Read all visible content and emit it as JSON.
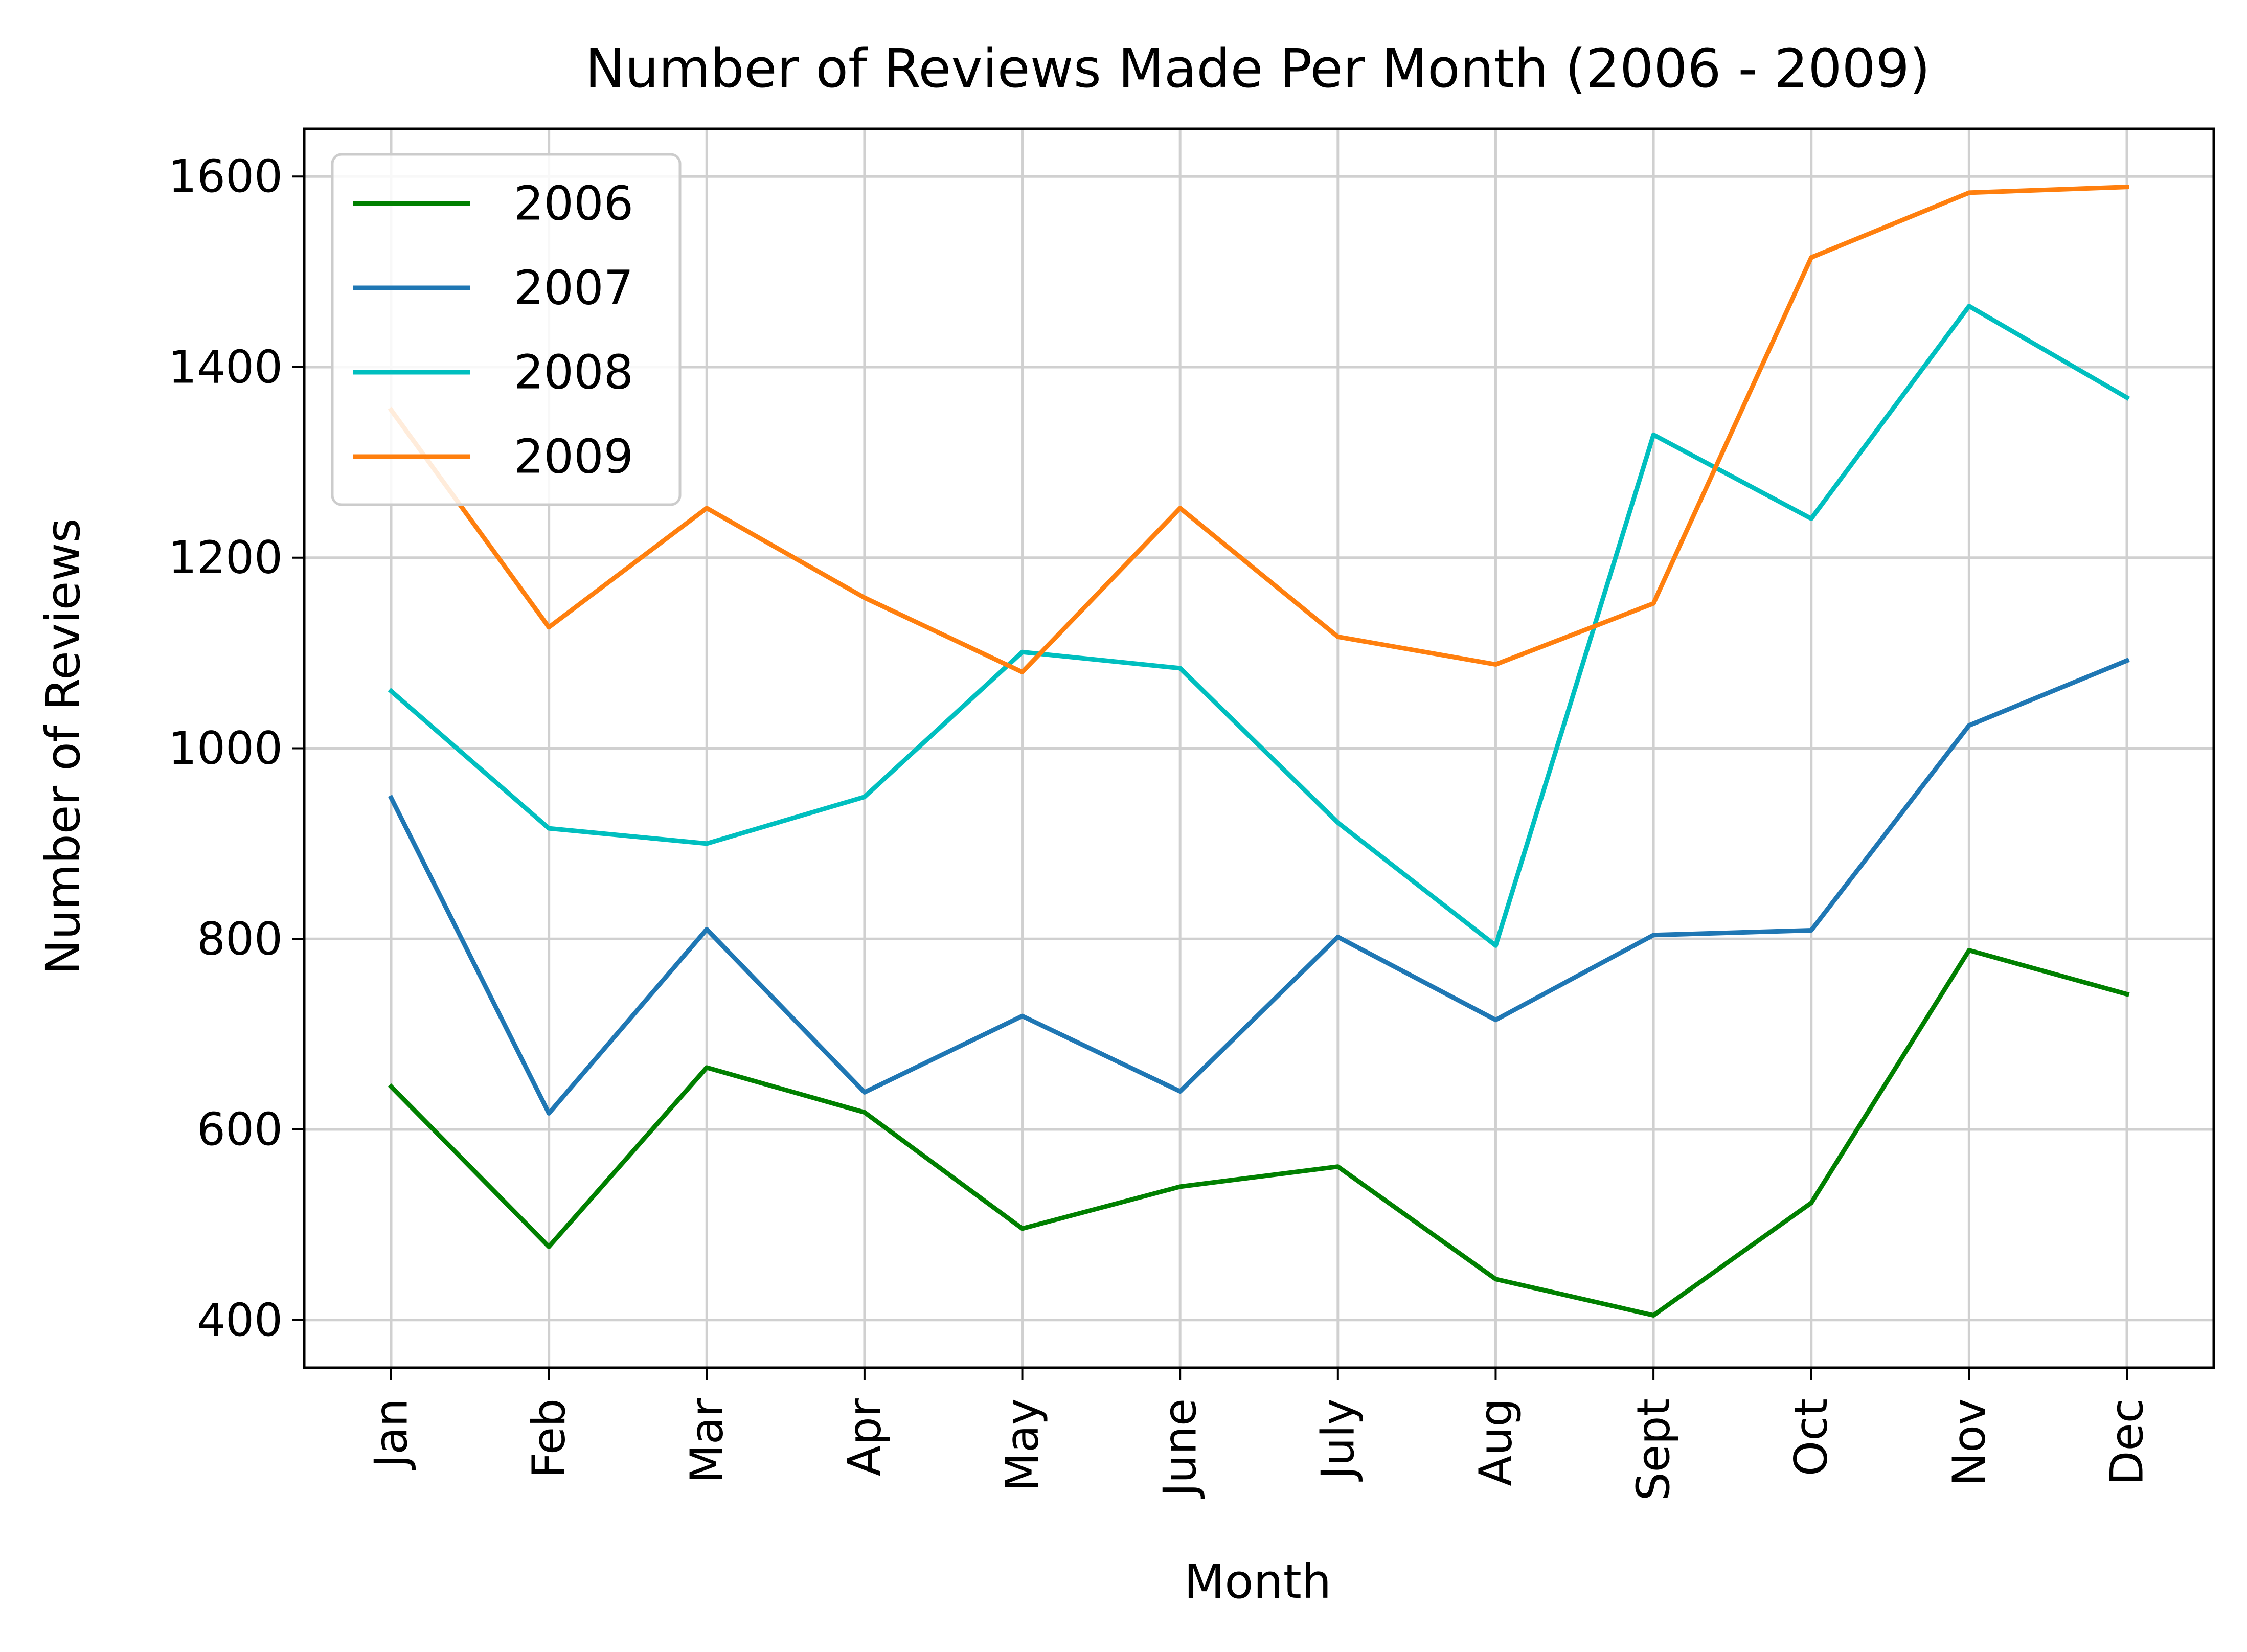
{
  "chart_data": {
    "type": "line",
    "title": "Number of Reviews Made Per Month (2006 - 2009)",
    "xlabel": "Month",
    "ylabel": "Number of Reviews",
    "categories": [
      "Jan",
      "Feb",
      "Mar",
      "Apr",
      "May",
      "June",
      "July",
      "Aug",
      "Sept",
      "Oct",
      "Nov",
      "Dec"
    ],
    "ylim": [
      350,
      1650
    ],
    "yticks": [
      400,
      600,
      800,
      1000,
      1200,
      1400,
      1600
    ],
    "grid": true,
    "legend_position": "top-left",
    "series": [
      {
        "name": "2006",
        "color": "#008000",
        "values": [
          645,
          477,
          665,
          618,
          496,
          540,
          561,
          443,
          405,
          523,
          788,
          742
        ]
      },
      {
        "name": "2007",
        "color": "#1f77b4",
        "values": [
          948,
          617,
          810,
          639,
          719,
          640,
          802,
          715,
          804,
          809,
          1024,
          1092
        ]
      },
      {
        "name": "2008",
        "color": "#00bfbf",
        "values": [
          1060,
          916,
          900,
          949,
          1101,
          1084,
          922,
          793,
          1329,
          1241,
          1464,
          1368
        ]
      },
      {
        "name": "2009",
        "color": "#ff7f0e",
        "values": [
          1355,
          1127,
          1252,
          1158,
          1080,
          1252,
          1117,
          1088,
          1152,
          1515,
          1583,
          1589
        ]
      }
    ]
  }
}
